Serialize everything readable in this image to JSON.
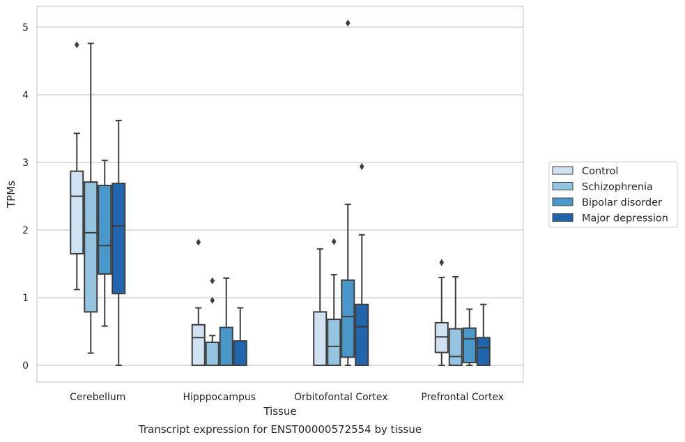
{
  "chart_data": {
    "type": "boxplot",
    "caption": "Transcript expression for ENST00000572554 by tissue",
    "xlabel": "Tissue",
    "ylabel": "TPMs",
    "ylim": [
      -0.25,
      5.3
    ],
    "yticks": [
      0,
      1,
      2,
      3,
      4,
      5
    ],
    "grid": "horizontal",
    "legend_position": "right",
    "categories": [
      "Cerebellum",
      "Hipppocampus",
      "Orbitofontal Cortex",
      "Prefrontal Cortex"
    ],
    "series": [
      {
        "name": "Control",
        "color": "#d0e1f2",
        "boxes": [
          {
            "whislo": 1.12,
            "q1": 1.65,
            "med": 2.5,
            "q3": 2.87,
            "whishi": 3.43,
            "fliers": [
              4.74
            ]
          },
          {
            "whislo": 0.0,
            "q1": 0.0,
            "med": 0.41,
            "q3": 0.6,
            "whishi": 0.85,
            "fliers": [
              1.82
            ]
          },
          {
            "whislo": 0.0,
            "q1": 0.0,
            "med": 0.0,
            "q3": 0.79,
            "whishi": 1.72,
            "fliers": []
          },
          {
            "whislo": 0.0,
            "q1": 0.19,
            "med": 0.42,
            "q3": 0.63,
            "whishi": 1.3,
            "fliers": [
              1.52
            ]
          }
        ]
      },
      {
        "name": "Schizophrenia",
        "color": "#94c4df",
        "boxes": [
          {
            "whislo": 0.18,
            "q1": 0.79,
            "med": 1.96,
            "q3": 2.71,
            "whishi": 4.76,
            "fliers": []
          },
          {
            "whislo": 0.0,
            "q1": 0.0,
            "med": 0.0,
            "q3": 0.34,
            "whishi": 0.44,
            "fliers": [
              1.25,
              0.96
            ]
          },
          {
            "whislo": 0.0,
            "q1": 0.0,
            "med": 0.28,
            "q3": 0.68,
            "whishi": 1.34,
            "fliers": [
              1.83
            ]
          },
          {
            "whislo": 0.0,
            "q1": 0.0,
            "med": 0.13,
            "q3": 0.54,
            "whishi": 1.31,
            "fliers": []
          }
        ]
      },
      {
        "name": "Bipolar disorder",
        "color": "#4a98c9",
        "boxes": [
          {
            "whislo": 0.58,
            "q1": 1.35,
            "med": 1.77,
            "q3": 2.66,
            "whishi": 3.03,
            "fliers": []
          },
          {
            "whislo": 0.0,
            "q1": 0.0,
            "med": 0.0,
            "q3": 0.56,
            "whishi": 1.29,
            "fliers": []
          },
          {
            "whislo": 0.0,
            "q1": 0.12,
            "med": 0.72,
            "q3": 1.26,
            "whishi": 2.38,
            "fliers": [
              5.06
            ]
          },
          {
            "whislo": 0.0,
            "q1": 0.04,
            "med": 0.39,
            "q3": 0.55,
            "whishi": 0.83,
            "fliers": []
          }
        ]
      },
      {
        "name": "Major depression",
        "color": "#2166ac",
        "boxes": [
          {
            "whislo": 0.0,
            "q1": 1.06,
            "med": 2.06,
            "q3": 2.69,
            "whishi": 3.62,
            "fliers": []
          },
          {
            "whislo": 0.0,
            "q1": 0.0,
            "med": 0.0,
            "q3": 0.36,
            "whishi": 0.85,
            "fliers": []
          },
          {
            "whislo": 0.0,
            "q1": 0.0,
            "med": 0.57,
            "q3": 0.9,
            "whishi": 1.93,
            "fliers": [
              2.94
            ]
          },
          {
            "whislo": 0.0,
            "q1": 0.0,
            "med": 0.26,
            "q3": 0.41,
            "whishi": 0.9,
            "fliers": []
          }
        ]
      }
    ]
  }
}
